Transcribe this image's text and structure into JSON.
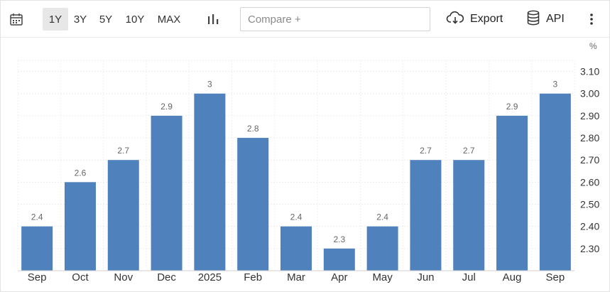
{
  "toolbar": {
    "calendar_icon": "calendar-icon",
    "ranges": [
      {
        "label": "1Y",
        "active": true
      },
      {
        "label": "3Y",
        "active": false
      },
      {
        "label": "5Y",
        "active": false
      },
      {
        "label": "10Y",
        "active": false
      },
      {
        "label": "MAX",
        "active": false
      }
    ],
    "chart_type_icon": "bar-chart-icon",
    "compare_placeholder": "Compare +",
    "export_label": "Export",
    "export_icon": "cloud-download-icon",
    "api_label": "API",
    "api_icon": "database-icon",
    "more_icon": "vertical-ellipsis-icon"
  },
  "chart_data": {
    "type": "bar",
    "categories": [
      "Sep",
      "Oct",
      "Nov",
      "Dec",
      "2025",
      "Feb",
      "Mar",
      "Apr",
      "May",
      "Jun",
      "Jul",
      "Aug",
      "Sep"
    ],
    "values": [
      2.4,
      2.6,
      2.7,
      2.9,
      3,
      2.8,
      2.4,
      2.3,
      2.4,
      2.7,
      2.7,
      2.9,
      3
    ],
    "data_labels": [
      "2.4",
      "2.6",
      "2.7",
      "2.9",
      "3",
      "2.8",
      "2.4",
      "2.3",
      "2.4",
      "2.7",
      "2.7",
      "2.9",
      "3"
    ],
    "unit": "%",
    "yticks": [
      "2.30",
      "2.40",
      "2.50",
      "2.60",
      "2.70",
      "2.80",
      "2.90",
      "3.00",
      "3.10"
    ],
    "ylim": [
      2.2,
      3.15
    ],
    "y_axis_position": "right",
    "grid": true,
    "bar_color": "#4f81bd"
  }
}
